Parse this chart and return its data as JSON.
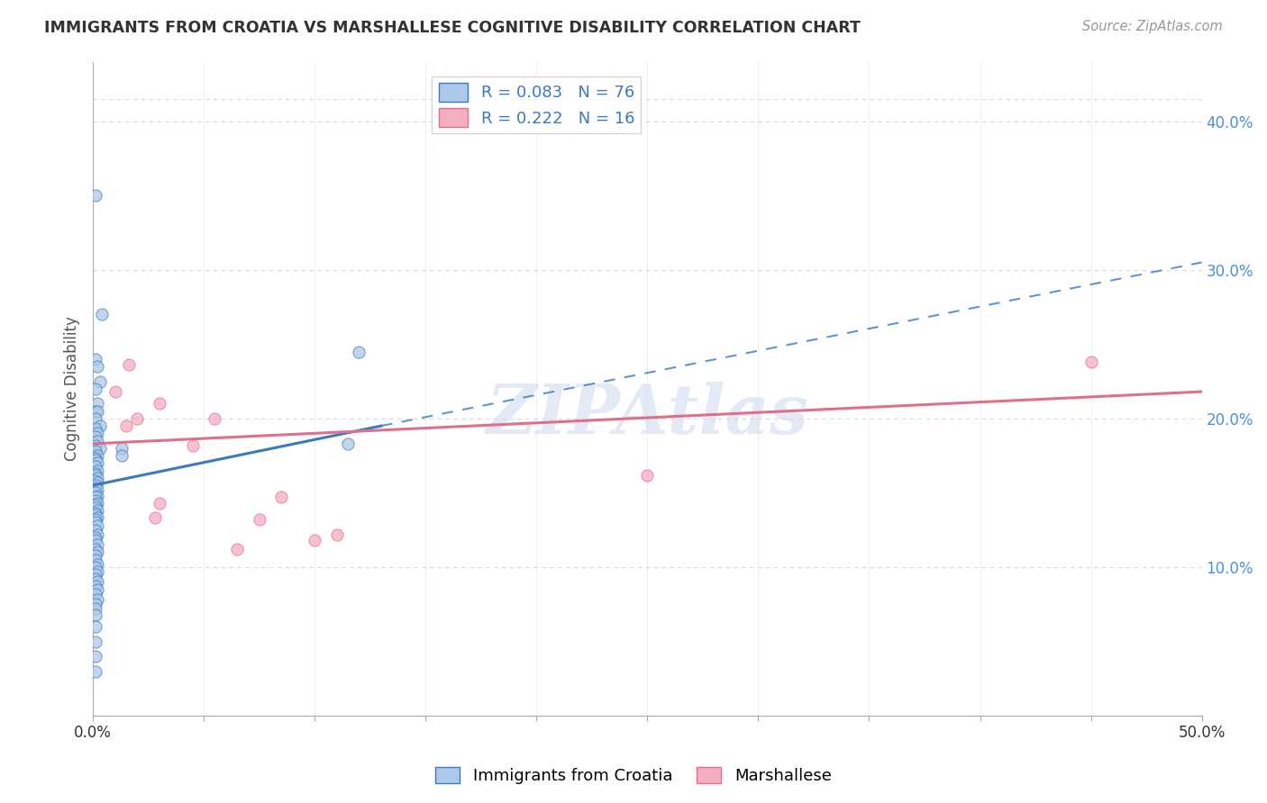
{
  "title": "IMMIGRANTS FROM CROATIA VS MARSHALLESE COGNITIVE DISABILITY CORRELATION CHART",
  "source": "Source: ZipAtlas.com",
  "ylabel": "Cognitive Disability",
  "xlim": [
    0.0,
    0.5
  ],
  "ylim": [
    0.0,
    0.44
  ],
  "watermark": "ZIPAtlas",
  "croatia_R": 0.083,
  "croatia_N": 76,
  "marshallese_R": 0.222,
  "marshallese_N": 16,
  "croatia_color": "#adc8e8",
  "marshallese_color": "#f5adc0",
  "croatia_line_color": "#3a7bbf",
  "marshallese_line_color": "#e0708a",
  "croatia_scatter": [
    [
      0.001,
      0.35
    ],
    [
      0.004,
      0.27
    ],
    [
      0.001,
      0.24
    ],
    [
      0.002,
      0.235
    ],
    [
      0.003,
      0.225
    ],
    [
      0.001,
      0.22
    ],
    [
      0.002,
      0.21
    ],
    [
      0.001,
      0.205
    ],
    [
      0.002,
      0.205
    ],
    [
      0.001,
      0.2
    ],
    [
      0.003,
      0.195
    ],
    [
      0.001,
      0.193
    ],
    [
      0.002,
      0.19
    ],
    [
      0.001,
      0.188
    ],
    [
      0.002,
      0.185
    ],
    [
      0.001,
      0.182
    ],
    [
      0.003,
      0.18
    ],
    [
      0.001,
      0.178
    ],
    [
      0.002,
      0.175
    ],
    [
      0.001,
      0.173
    ],
    [
      0.001,
      0.172
    ],
    [
      0.002,
      0.17
    ],
    [
      0.001,
      0.168
    ],
    [
      0.002,
      0.165
    ],
    [
      0.001,
      0.163
    ],
    [
      0.001,
      0.162
    ],
    [
      0.002,
      0.16
    ],
    [
      0.001,
      0.158
    ],
    [
      0.002,
      0.157
    ],
    [
      0.001,
      0.155
    ],
    [
      0.001,
      0.153
    ],
    [
      0.002,
      0.152
    ],
    [
      0.001,
      0.15
    ],
    [
      0.002,
      0.148
    ],
    [
      0.001,
      0.147
    ],
    [
      0.001,
      0.145
    ],
    [
      0.002,
      0.143
    ],
    [
      0.001,
      0.142
    ],
    [
      0.001,
      0.14
    ],
    [
      0.002,
      0.138
    ],
    [
      0.001,
      0.136
    ],
    [
      0.001,
      0.135
    ],
    [
      0.002,
      0.133
    ],
    [
      0.001,
      0.132
    ],
    [
      0.001,
      0.13
    ],
    [
      0.002,
      0.128
    ],
    [
      0.001,
      0.125
    ],
    [
      0.002,
      0.122
    ],
    [
      0.001,
      0.12
    ],
    [
      0.001,
      0.118
    ],
    [
      0.002,
      0.115
    ],
    [
      0.001,
      0.112
    ],
    [
      0.002,
      0.11
    ],
    [
      0.001,
      0.108
    ],
    [
      0.001,
      0.105
    ],
    [
      0.002,
      0.102
    ],
    [
      0.001,
      0.1
    ],
    [
      0.002,
      0.097
    ],
    [
      0.001,
      0.095
    ],
    [
      0.001,
      0.092
    ],
    [
      0.002,
      0.09
    ],
    [
      0.001,
      0.087
    ],
    [
      0.002,
      0.085
    ],
    [
      0.001,
      0.082
    ],
    [
      0.002,
      0.078
    ],
    [
      0.001,
      0.075
    ],
    [
      0.001,
      0.072
    ],
    [
      0.001,
      0.068
    ],
    [
      0.001,
      0.06
    ],
    [
      0.001,
      0.05
    ],
    [
      0.001,
      0.04
    ],
    [
      0.001,
      0.03
    ],
    [
      0.013,
      0.18
    ],
    [
      0.013,
      0.175
    ],
    [
      0.12,
      0.245
    ],
    [
      0.115,
      0.183
    ]
  ],
  "marshallese_scatter": [
    [
      0.016,
      0.236
    ],
    [
      0.01,
      0.218
    ],
    [
      0.02,
      0.2
    ],
    [
      0.03,
      0.21
    ],
    [
      0.015,
      0.195
    ],
    [
      0.055,
      0.2
    ],
    [
      0.045,
      0.182
    ],
    [
      0.03,
      0.143
    ],
    [
      0.028,
      0.133
    ],
    [
      0.25,
      0.162
    ],
    [
      0.45,
      0.238
    ],
    [
      0.085,
      0.147
    ],
    [
      0.075,
      0.132
    ],
    [
      0.11,
      0.122
    ],
    [
      0.1,
      0.118
    ],
    [
      0.065,
      0.112
    ]
  ],
  "croatia_line_x0": 0.0,
  "croatia_line_x_split": 0.13,
  "croatia_line_x1": 0.5,
  "croatia_line_y_at_0": 0.155,
  "croatia_line_y_at_split": 0.195,
  "croatia_line_y_at_end": 0.305,
  "marshallese_line_y_at_0": 0.183,
  "marshallese_line_y_at_end": 0.218,
  "grid_color": "#d8d8d8",
  "grid_style": "--",
  "bg_color": "#ffffff",
  "title_color": "#333333",
  "axis_color": "#cccccc",
  "right_tick_color": "#4a90d9",
  "ytick_positions": [
    0.1,
    0.2,
    0.3,
    0.4
  ],
  "ytick_labels": [
    "10.0%",
    "20.0%",
    "30.0%",
    "40.0%"
  ]
}
